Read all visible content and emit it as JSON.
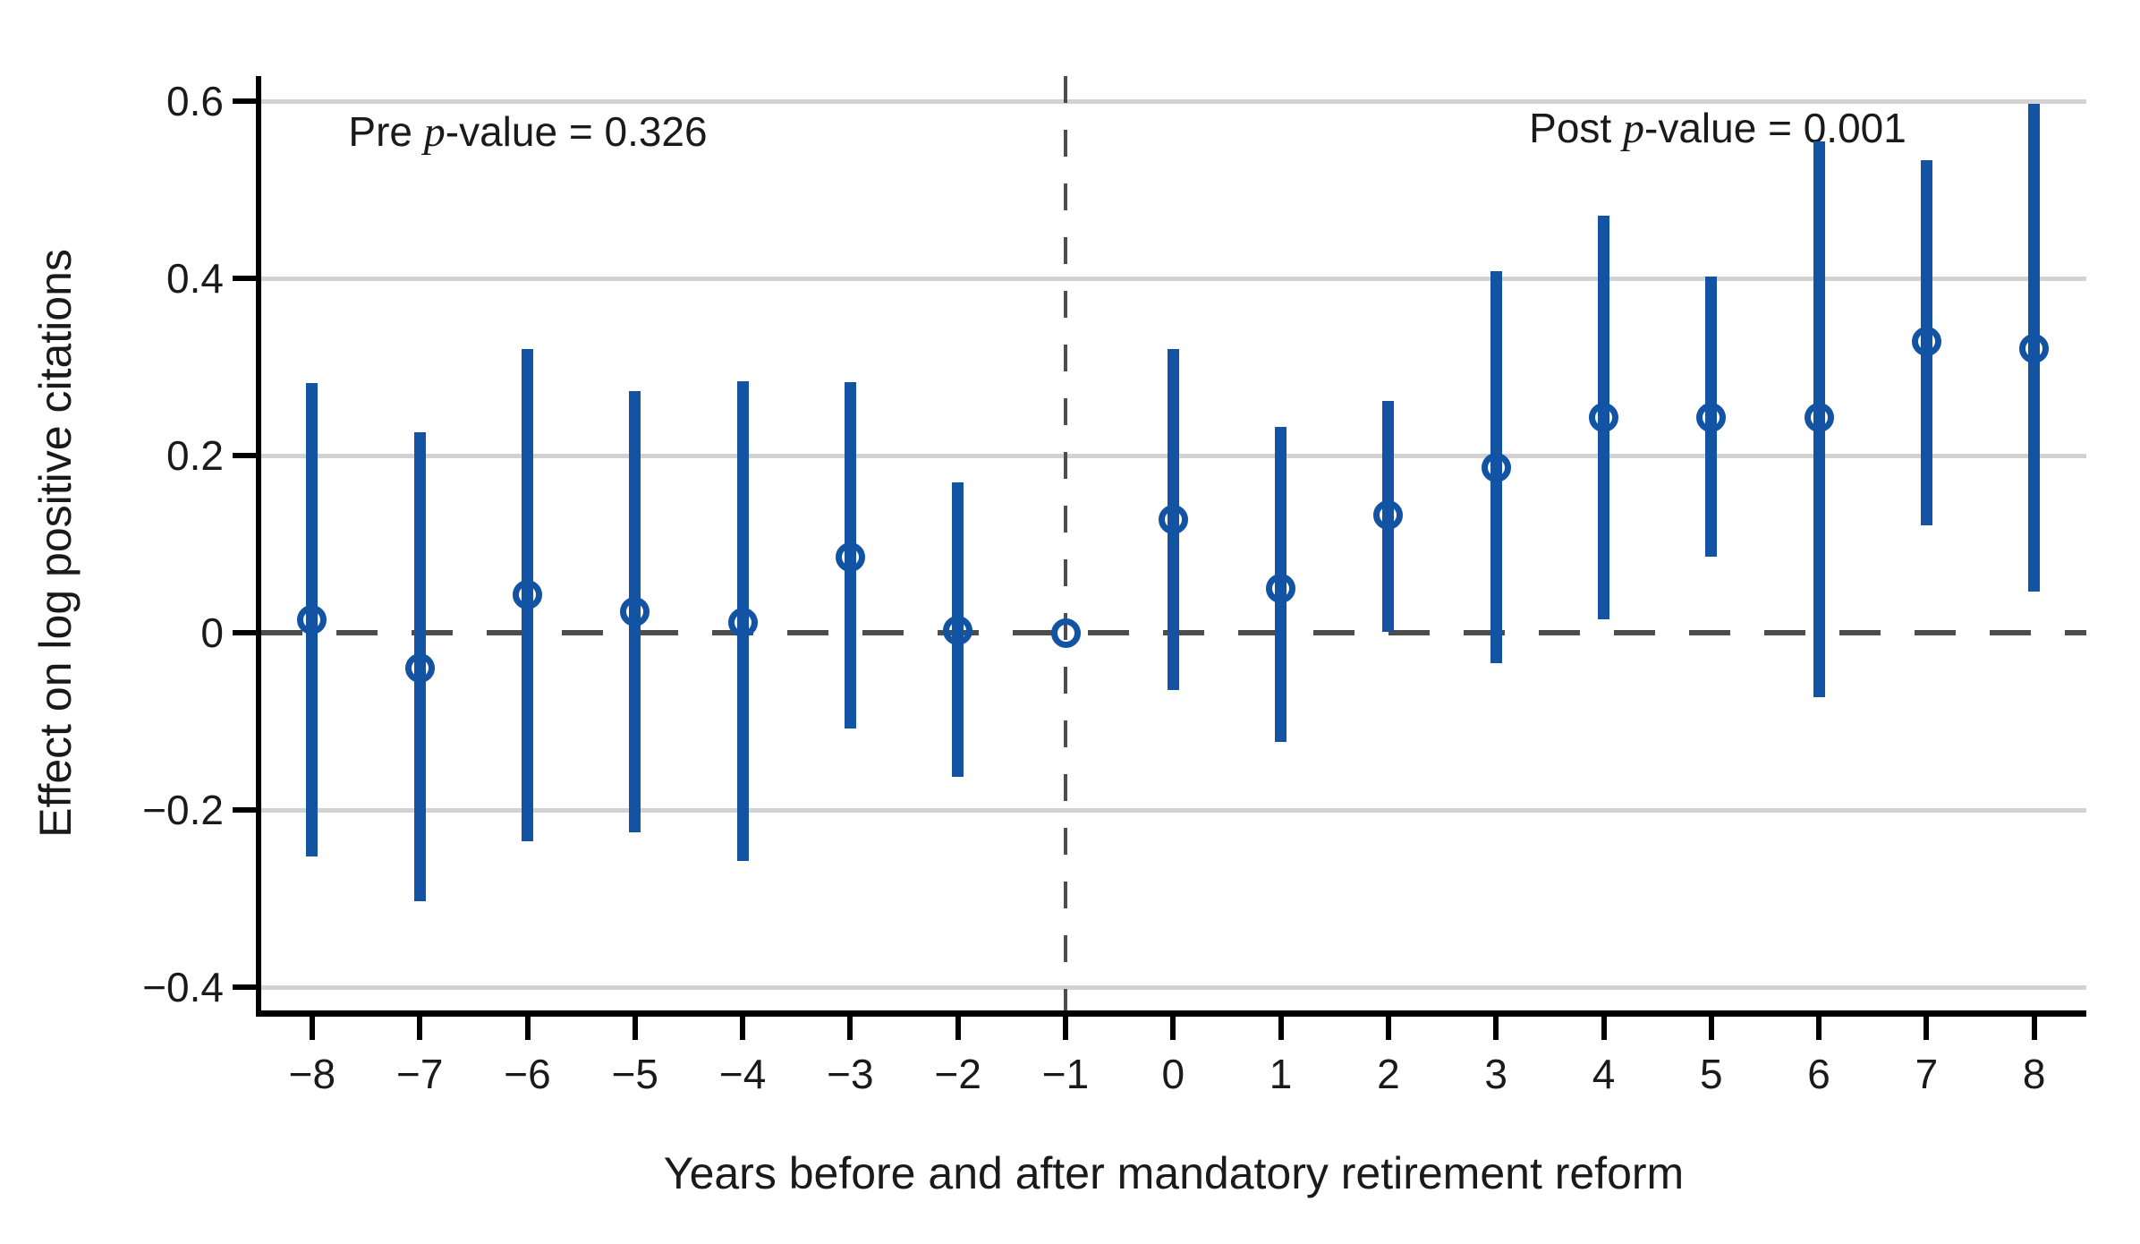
{
  "chart_data": {
    "type": "scatter",
    "subtype": "event-study-errorbar",
    "title": "",
    "xlabel": "Years before and after mandatory retirement reform",
    "ylabel": "Effect on log positive citations",
    "xlim": [
      -8.47,
      8.49
    ],
    "ylim": [
      -0.426,
      0.628
    ],
    "grid": "horizontal-light",
    "x_ticks": [
      -8,
      -7,
      -6,
      -5,
      -4,
      -3,
      -2,
      -1,
      0,
      1,
      2,
      3,
      4,
      5,
      6,
      7,
      8
    ],
    "x_tick_labels": [
      "−8",
      "−7",
      "−6",
      "−5",
      "−4",
      "−3",
      "−2",
      "−1",
      "0",
      "1",
      "2",
      "3",
      "4",
      "5",
      "6",
      "7",
      "8"
    ],
    "y_ticks": [
      0.6,
      0.4,
      0.2,
      0,
      -0.2,
      -0.4
    ],
    "y_tick_labels": [
      "0.6",
      "0.4",
      "0.2",
      "0",
      "−0.2",
      "−0.4"
    ],
    "reference_period": -1,
    "zero_reference_line": true,
    "annotations": {
      "pre": {
        "prefix": "Pre ",
        "italic": "p",
        "suffix": "-value = 0.326"
      },
      "post": {
        "prefix": "Post ",
        "italic": "p",
        "suffix": "-value = 0.001"
      }
    },
    "series": [
      {
        "name": "Effect on log positive citations (point estimate with 95% CI)",
        "points": [
          {
            "t": -8,
            "est": 0.015,
            "lo": -0.253,
            "hi": 0.282
          },
          {
            "t": -7,
            "est": -0.04,
            "lo": -0.303,
            "hi": 0.226
          },
          {
            "t": -6,
            "est": 0.043,
            "lo": -0.235,
            "hi": 0.32
          },
          {
            "t": -5,
            "est": 0.024,
            "lo": -0.225,
            "hi": 0.273
          },
          {
            "t": -4,
            "est": 0.012,
            "lo": -0.258,
            "hi": 0.284
          },
          {
            "t": -3,
            "est": 0.085,
            "lo": -0.108,
            "hi": 0.283
          },
          {
            "t": -2,
            "est": 0.003,
            "lo": -0.163,
            "hi": 0.17
          },
          {
            "t": -1,
            "est": 0.0,
            "lo": null,
            "hi": null
          },
          {
            "t": 0,
            "est": 0.128,
            "lo": -0.065,
            "hi": 0.32
          },
          {
            "t": 1,
            "est": 0.05,
            "lo": -0.123,
            "hi": 0.232
          },
          {
            "t": 2,
            "est": 0.133,
            "lo": 0.001,
            "hi": 0.262
          },
          {
            "t": 3,
            "est": 0.186,
            "lo": -0.034,
            "hi": 0.408
          },
          {
            "t": 4,
            "est": 0.243,
            "lo": 0.015,
            "hi": 0.471
          },
          {
            "t": 5,
            "est": 0.243,
            "lo": 0.086,
            "hi": 0.402
          },
          {
            "t": 6,
            "est": 0.243,
            "lo": -0.073,
            "hi": 0.555
          },
          {
            "t": 7,
            "est": 0.329,
            "lo": 0.121,
            "hi": 0.533
          },
          {
            "t": 8,
            "est": 0.321,
            "lo": 0.046,
            "hi": 0.597
          }
        ]
      }
    ],
    "colors": {
      "point_and_ci": "#1253a4",
      "gridline": "#d2d2d2",
      "dashed_reference": "#4d4d4d",
      "axis": "#000000",
      "text": "#1a1a1a"
    }
  }
}
